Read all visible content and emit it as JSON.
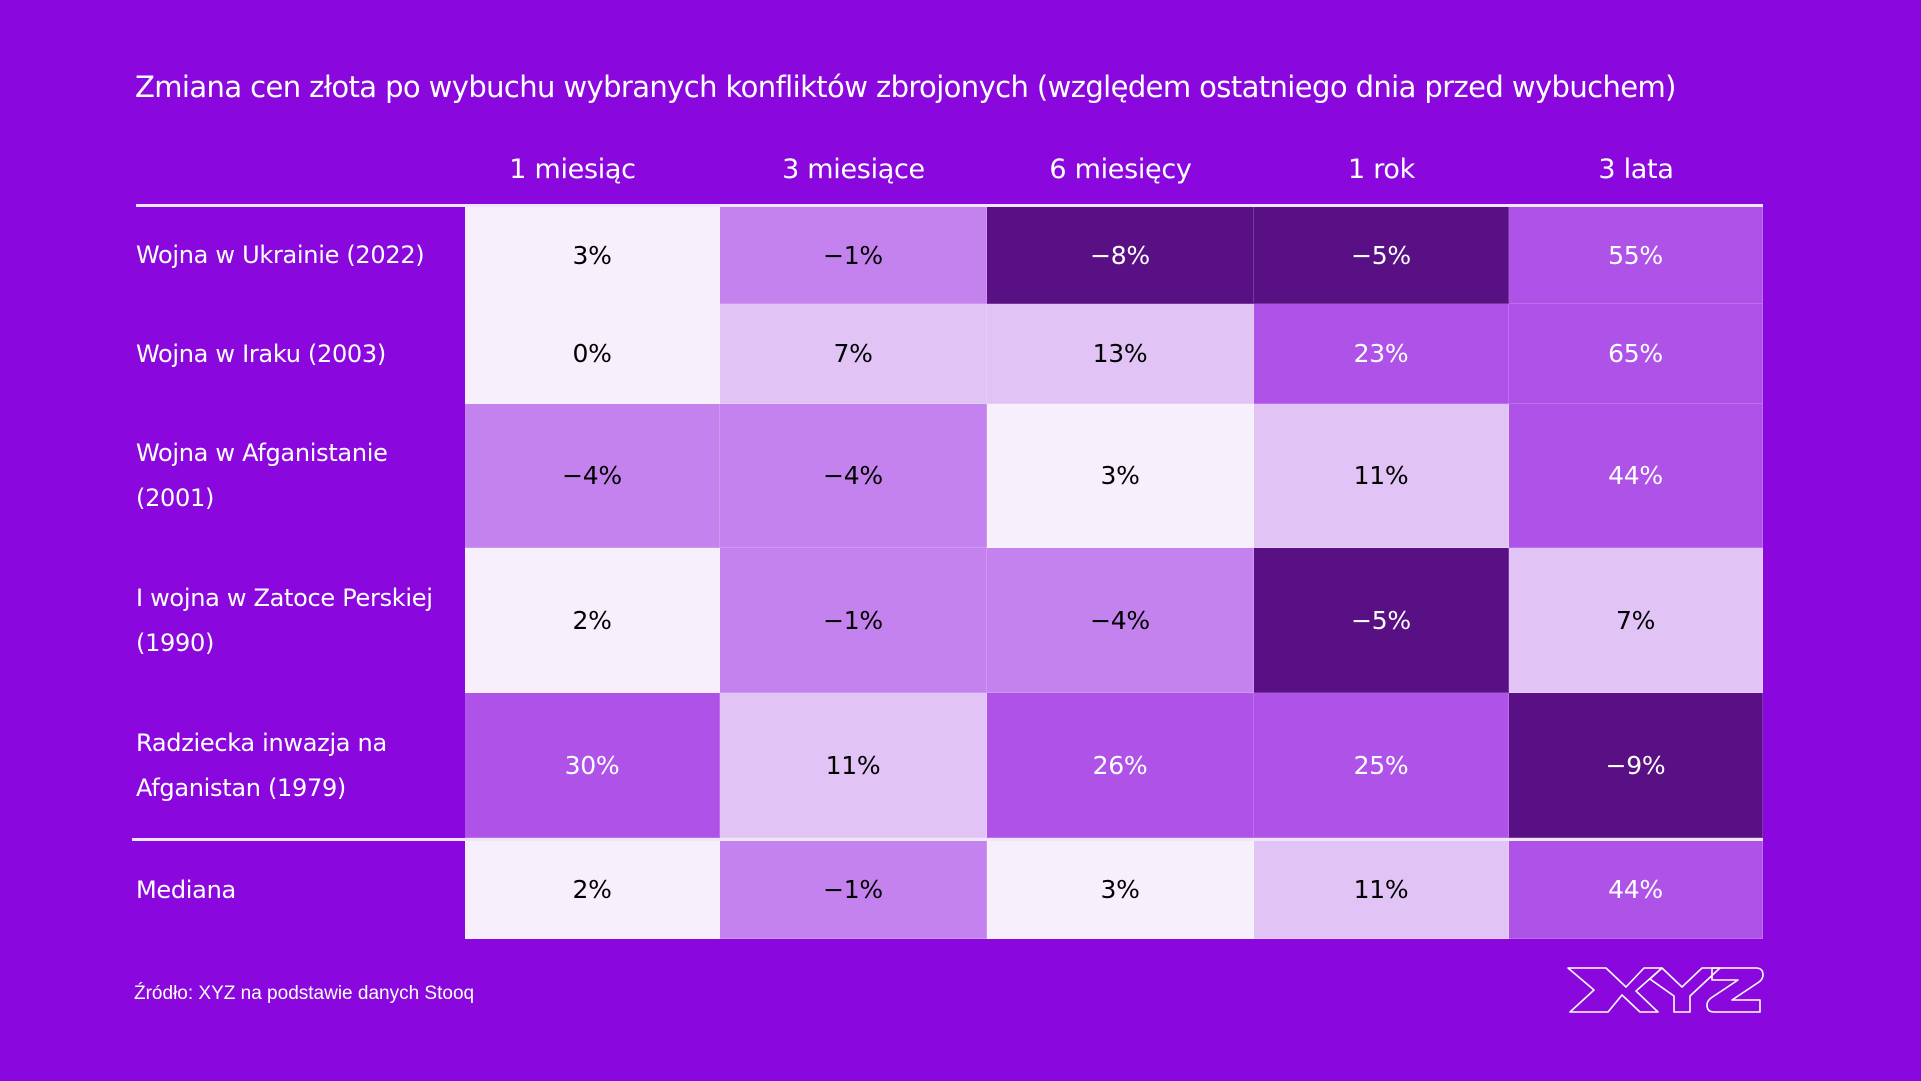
{
  "title": "Zmiana cen złota po wybuchu wybranych konfliktów zbrojonych (względem ostatniego dnia przed wybuchem)",
  "footer": {
    "source": "Źródło: XYZ na podstawie danych Stooq",
    "logo_text": "XYZ"
  },
  "colors": {
    "background": "#8a08de",
    "text": "#ffffff",
    "scale": {
      "very_light": "#f7effc",
      "light": "#e1c3f5",
      "mid_light": "#c482ee",
      "mid": "#ae52e8",
      "dark": "#5a1085"
    }
  },
  "chart_data": {
    "type": "heatmap",
    "title": "Zmiana cen złota po wybuchu wybranych konfliktów zbrojonych (względem ostatniego dnia przed wybuchem)",
    "columns": [
      "1 miesiąc",
      "3 miesiące",
      "6 miesięcy",
      "1 rok",
      "3 lata"
    ],
    "rows": [
      {
        "label": "Wojna w Ukrainie (2022)",
        "values": [
          3,
          -1,
          -8,
          -5,
          55
        ],
        "display": [
          "3%",
          "−1%",
          "−8%",
          "−5%",
          "55%"
        ]
      },
      {
        "label": "Wojna w Iraku (2003)",
        "values": [
          0,
          7,
          13,
          23,
          65
        ],
        "display": [
          "0%",
          "7%",
          "13%",
          "23%",
          "65%"
        ]
      },
      {
        "label": "Wojna w Afganistanie (2001)",
        "values": [
          -4,
          -4,
          3,
          11,
          44
        ],
        "display": [
          "−4%",
          "−4%",
          "3%",
          "11%",
          "44%"
        ]
      },
      {
        "label": "I wojna w Zatoce Perskiej (1990)",
        "values": [
          2,
          -1,
          -4,
          -5,
          7
        ],
        "display": [
          "2%",
          "−1%",
          "−4%",
          "−5%",
          "7%"
        ]
      },
      {
        "label": "Radziecka inwazja na Afganistan (1979)",
        "values": [
          30,
          11,
          26,
          25,
          -9
        ],
        "display": [
          "30%",
          "11%",
          "26%",
          "25%",
          "−9%"
        ]
      }
    ],
    "summary_row": {
      "label": "Mediana",
      "values": [
        2,
        -1,
        3,
        11,
        44
      ],
      "display": [
        "2%",
        "−1%",
        "3%",
        "11%",
        "44%"
      ]
    },
    "unit": "%",
    "source": "Źródło: XYZ na podstawie danych Stooq"
  }
}
